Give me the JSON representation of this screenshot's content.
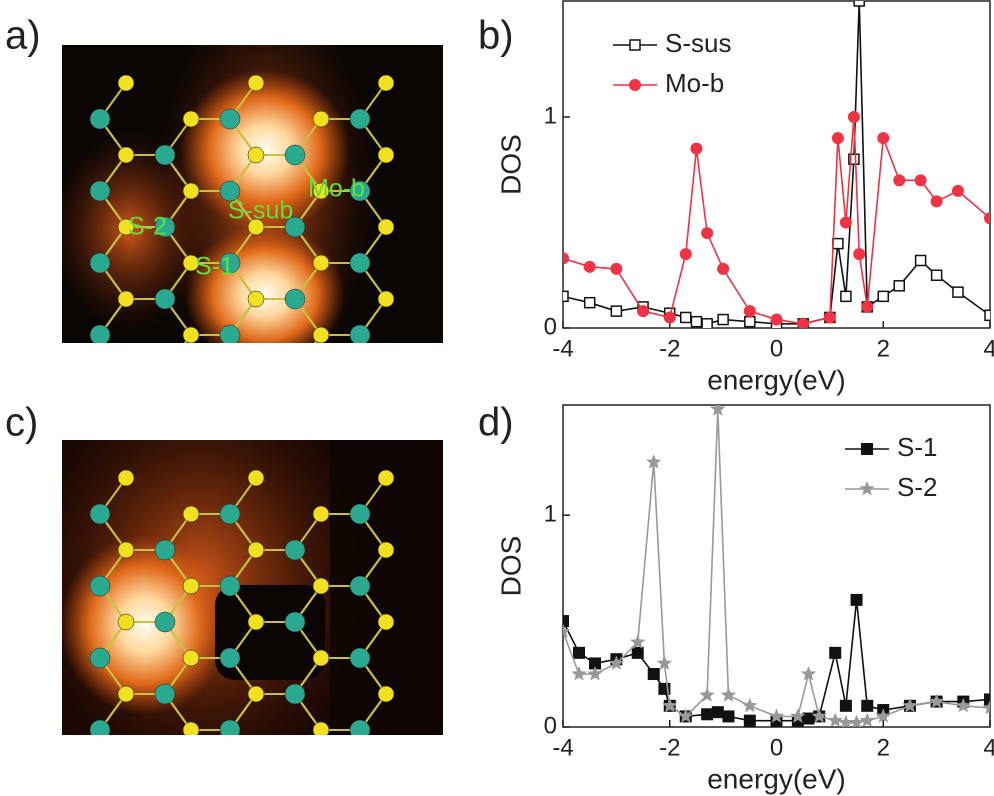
{
  "panel_labels": [
    "a)",
    "b)",
    "c)",
    "d)"
  ],
  "image_labels": [
    "S-2",
    "S-sub",
    "Mo-b",
    "S-1"
  ],
  "chart_data": [
    {
      "type": "line",
      "xlabel": "energy(eV)",
      "ylabel": "DOS",
      "x": [
        -4,
        -3.5,
        -3,
        -2.5,
        -2,
        -1.7,
        -1.5,
        -1.3,
        -1,
        -0.5,
        0,
        0.5,
        1,
        1.15,
        1.3,
        1.45,
        1.55,
        1.7,
        2,
        2.3,
        2.7,
        3,
        3.4,
        4
      ],
      "series": [
        {
          "name": "S-sus",
          "color": "#111111",
          "marker": "open-square",
          "values": [
            0.15,
            0.12,
            0.08,
            0.1,
            0.07,
            0.05,
            0.03,
            0.02,
            0.04,
            0.03,
            0.02,
            0.02,
            0.05,
            0.4,
            0.15,
            0.8,
            1.55,
            0.1,
            0.15,
            0.2,
            0.32,
            0.25,
            0.17,
            0.06
          ]
        },
        {
          "name": "Mo-b",
          "color": "#ee3344",
          "marker": "circle",
          "values": [
            0.33,
            0.29,
            0.28,
            0.08,
            0.05,
            0.35,
            0.85,
            0.45,
            0.28,
            0.08,
            0.04,
            0.02,
            0.05,
            0.9,
            0.5,
            1.0,
            0.35,
            0.1,
            0.9,
            0.7,
            0.7,
            0.6,
            0.65,
            0.52
          ]
        }
      ],
      "xlim": [
        -4,
        4
      ],
      "ylim": [
        0,
        1.55
      ],
      "xticks": [
        -4,
        -2,
        0,
        2,
        4
      ],
      "yticks": [
        0,
        1
      ],
      "legend": "upper left"
    },
    {
      "type": "line",
      "xlabel": "energy(eV)",
      "ylabel": "DOS",
      "x": [
        -4,
        -3.7,
        -3.4,
        -3,
        -2.6,
        -2.3,
        -2.1,
        -2,
        -1.7,
        -1.3,
        -1.1,
        -0.9,
        -0.5,
        0,
        0.4,
        0.6,
        0.8,
        1.1,
        1.3,
        1.5,
        1.7,
        2,
        2.5,
        3,
        3.5,
        4
      ],
      "series": [
        {
          "name": "S-1",
          "color": "#111111",
          "marker": "square",
          "values": [
            0.5,
            0.35,
            0.3,
            0.32,
            0.35,
            0.25,
            0.18,
            0.1,
            0.05,
            0.06,
            0.07,
            0.05,
            0.03,
            0.03,
            0.03,
            0.04,
            0.05,
            0.35,
            0.1,
            0.6,
            0.1,
            0.08,
            0.1,
            0.12,
            0.12,
            0.13
          ]
        },
        {
          "name": "S-2",
          "color": "#999999",
          "marker": "star",
          "values": [
            0.45,
            0.25,
            0.25,
            0.3,
            0.4,
            1.25,
            0.3,
            0.1,
            0.05,
            0.15,
            1.5,
            0.15,
            0.1,
            0.05,
            0.05,
            0.25,
            0.05,
            0.03,
            0.02,
            0.02,
            0.03,
            0.05,
            0.1,
            0.12,
            0.1,
            0.09
          ]
        }
      ],
      "xlim": [
        -4,
        4
      ],
      "ylim": [
        0,
        1.52
      ],
      "xticks": [
        -4,
        -2,
        0,
        2,
        4
      ],
      "yticks": [
        0,
        1
      ],
      "legend": "upper right"
    }
  ]
}
